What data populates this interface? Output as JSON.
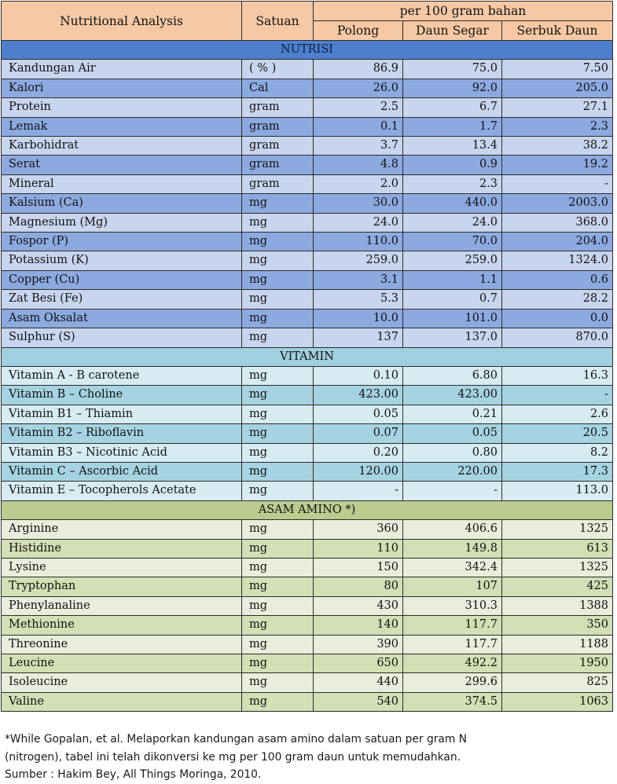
{
  "header": {
    "col_analysis": "Nutritional Analysis",
    "col_unit": "Satuan",
    "group_label": "per 100 gram bahan",
    "col_pods": "Polong",
    "col_fresh": "Daun Segar",
    "col_powder": "Serbuk Daun"
  },
  "sections": [
    {
      "title": "NUTRISI",
      "style": "nutrisi",
      "rows": [
        [
          "Kandungan Air",
          "( % )",
          "86.9",
          "75.0",
          "7.50"
        ],
        [
          "Kalori",
          "Cal",
          "26.0",
          "92.0",
          "205.0"
        ],
        [
          "Protein",
          "gram",
          "2.5",
          "6.7",
          "27.1"
        ],
        [
          "Lemak",
          "gram",
          "0.1",
          "1.7",
          "2.3"
        ],
        [
          "Karbohidrat",
          "gram",
          "3.7",
          "13.4",
          "38.2"
        ],
        [
          "Serat",
          "gram",
          "4.8",
          "0.9",
          "19.2"
        ],
        [
          "Mineral",
          "gram",
          "2.0",
          "2.3",
          "-"
        ],
        [
          "Kalsium  (Ca)",
          "mg",
          "30.0",
          "440.0",
          "2003.0"
        ],
        [
          "Magnesium  (Mg)",
          "mg",
          "24.0",
          "24.0",
          "368.0"
        ],
        [
          "Fospor  (P)",
          "mg",
          "110.0",
          "70.0",
          "204.0"
        ],
        [
          "Potassium  (K)",
          "mg",
          "259.0",
          "259.0",
          "1324.0"
        ],
        [
          "Copper  (Cu)",
          "mg",
          "3.1",
          "1.1",
          "0.6"
        ],
        [
          "Zat Besi  (Fe)",
          "mg",
          "5.3",
          "0.7",
          "28.2"
        ],
        [
          "Asam Oksalat",
          "mg",
          "10.0",
          "101.0",
          "0.0"
        ],
        [
          "Sulphur (S)",
          "mg",
          "137",
          "137.0",
          "870.0"
        ]
      ]
    },
    {
      "title": "VITAMIN",
      "style": "vitamin",
      "rows": [
        [
          "Vitamin A - B carotene",
          "mg",
          "0.10",
          "6.80",
          "16.3"
        ],
        [
          "Vitamin B – Choline",
          "mg",
          "423.00",
          "423.00",
          "-"
        ],
        [
          "Vitamin B1 – Thiamin",
          "mg",
          "0.05",
          "0.21",
          "2.6"
        ],
        [
          "Vitamin B2 – Riboflavin",
          "mg",
          "0.07",
          "0.05",
          "20.5"
        ],
        [
          "Vitamin B3 – Nicotinic  Acid",
          "mg",
          "0.20",
          "0.80",
          "8.2"
        ],
        [
          "Vitamin C – Ascorbic Acid",
          "mg",
          "120.00",
          "220.00",
          "17.3"
        ],
        [
          "Vitamin E – Tocopherols Acetate",
          "mg",
          "-",
          "-",
          "113.0"
        ]
      ]
    },
    {
      "title": "ASAM AMINO *)",
      "style": "amino",
      "rows": [
        [
          "Arginine",
          "mg",
          "360",
          "406.6",
          "1325"
        ],
        [
          "Histidine",
          "mg",
          "110",
          "149.8",
          "613"
        ],
        [
          "Lysine",
          "mg",
          "150",
          "342.4",
          "1325"
        ],
        [
          "Tryptophan",
          "mg",
          "80",
          "107",
          "425"
        ],
        [
          "Phenylanaline",
          "mg",
          "430",
          "310.3",
          "1388"
        ],
        [
          "Methionine",
          "mg",
          "140",
          "117.7",
          "350"
        ],
        [
          "Threonine",
          "mg",
          "390",
          "117.7",
          "1188"
        ],
        [
          "Leucine",
          "mg",
          "650",
          "492.2",
          "1950"
        ],
        [
          "Isoleucine",
          "mg",
          "440",
          "299.6",
          "825"
        ],
        [
          "Valine",
          "mg",
          "540",
          "374.5",
          "1063"
        ]
      ]
    }
  ],
  "footnote": {
    "line1": "*While Gopalan,  et al. Melaporkan kandungan asam amino dalam satuan per gram N",
    "line2": "(nitrogen), tabel ini telah dikonversi  ke mg per 100 gram daun untuk memudahkan.",
    "line3": "Sumber : Hakim Bey, All Things Moringa, 2010."
  }
}
